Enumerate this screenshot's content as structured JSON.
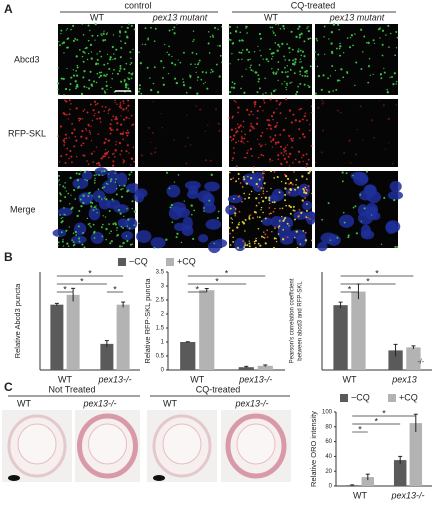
{
  "panel_labels": [
    "A",
    "B",
    "C"
  ],
  "panel_a": {
    "groups": [
      "control",
      "CQ-treated"
    ],
    "columns": [
      "WT",
      "pex13 mutant",
      "WT",
      "pex13 mutant"
    ],
    "rows": [
      "Abcd3",
      "RFP-SKL",
      "Merge"
    ]
  },
  "panel_c": {
    "groups": [
      "Not Treated",
      "CQ-treated"
    ],
    "columns": [
      "WT",
      "pex13-/-",
      "WT",
      "pex13-/-"
    ]
  },
  "chart_data": [
    {
      "type": "bar",
      "y_label": [
        "Relative Abcd3 puncta"
      ],
      "categories": [
        "WT",
        "pex13-/-"
      ],
      "series": [
        {
          "name": "−CQ",
          "color": "#5a5a5a",
          "values": [
            1.0,
            0.4
          ],
          "errors": [
            0.02,
            0.05
          ]
        },
        {
          "name": "+CQ",
          "color": "#b3b3b3",
          "values": [
            1.15,
            1.0
          ],
          "errors": [
            0.1,
            0.04
          ]
        }
      ],
      "ylim": [
        0,
        1.5
      ],
      "legend": true,
      "annotations": [
        "*",
        "*",
        "*",
        "*"
      ]
    },
    {
      "type": "bar",
      "y_label": [
        "Relative RFP-SKL puncta"
      ],
      "categories": [
        "WT",
        "pex13-/-"
      ],
      "series": [
        {
          "name": "−CQ",
          "color": "#5a5a5a",
          "values": [
            1.0,
            0.1
          ],
          "errors": [
            0.01,
            0.03
          ]
        },
        {
          "name": "+CQ",
          "color": "#b3b3b3",
          "values": [
            2.85,
            0.15
          ],
          "errors": [
            0.06,
            0.03
          ]
        }
      ],
      "ylim": [
        0,
        3.5
      ],
      "yticks": [
        0,
        0.5,
        1,
        1.5,
        2,
        2.5,
        3,
        3.5
      ],
      "legend": false,
      "annotations": [
        "*",
        "*",
        "*"
      ]
    },
    {
      "type": "bar",
      "y_label": [
        "Pearson's correlation coefficient",
        "between abcd3 and RFP-SKL"
      ],
      "categories": [
        "WT",
        "pex13"
      ],
      "series": [
        {
          "name": "−CQ",
          "color": "#5a5a5a",
          "values": [
            0.43,
            0.13
          ],
          "errors": [
            0.02,
            0.04
          ]
        },
        {
          "name": "+CQ",
          "color": "#b3b3b3",
          "values": [
            0.52,
            0.15
          ],
          "errors": [
            0.05,
            0.01
          ]
        }
      ],
      "ylim": [
        0,
        0.65
      ],
      "legend": false,
      "annotations": [
        "*",
        "*",
        "*"
      ],
      "note": "-/-"
    },
    {
      "type": "bar",
      "y_label": [
        "Relative ORO intensity"
      ],
      "categories": [
        "WT",
        "pex13-/-"
      ],
      "series": [
        {
          "name": "−CQ",
          "color": "#5a5a5a",
          "values": [
            1,
            35
          ],
          "errors": [
            0.5,
            5
          ]
        },
        {
          "name": "+CQ",
          "color": "#b3b3b3",
          "values": [
            12,
            85
          ],
          "errors": [
            4,
            12
          ]
        }
      ],
      "ylim": [
        0,
        100
      ],
      "yticks": [
        0,
        20,
        40,
        60,
        80,
        100
      ],
      "legend": true,
      "annotations": [
        "*",
        "*",
        "*"
      ]
    }
  ]
}
